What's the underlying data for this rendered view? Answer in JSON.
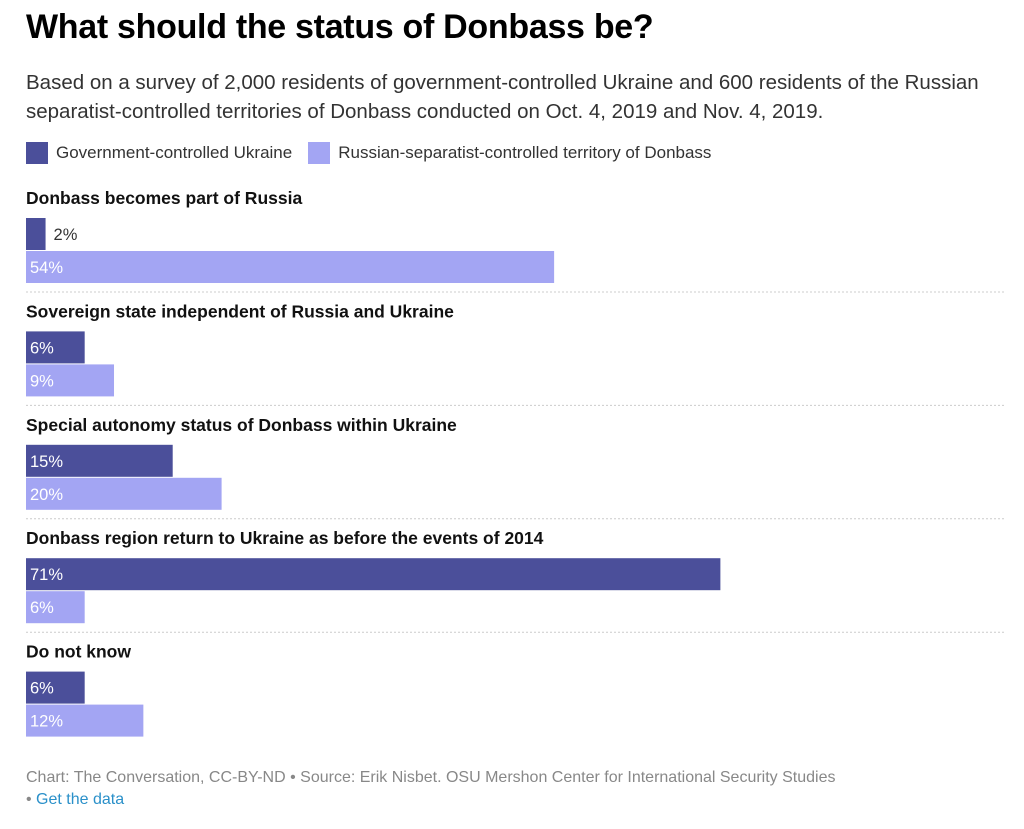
{
  "header": {
    "title": "What should the status of Donbass be?",
    "subtitle": "Based on a survey of 2,000 residents of government-controlled Ukraine and 600 residents of the Russian separatist-controlled territories of Donbass conducted on Oct. 4, 2019 and Nov. 4, 2019."
  },
  "footer": {
    "source": "Chart: The Conversation, CC-BY-ND • Source: Erik Nisbet. OSU Mershon Center for International Security Studies",
    "bullet": "• ",
    "link": "Get the data"
  },
  "colors": {
    "government": "#4b4f9a",
    "separatist": "#a3a5f3",
    "divider": "#cccccc"
  },
  "chart_data": {
    "type": "bar",
    "orientation": "horizontal",
    "title": "What should the status of Donbass be?",
    "categories": [
      "Donbass becomes part of Russia",
      "Sovereign state independent of Russia and Ukraine",
      "Special autonomy status of Donbass within Ukraine",
      "Donbass region return to Ukraine as before the events of 2014",
      "Do not know"
    ],
    "series": [
      {
        "name": "Government-controlled Ukraine",
        "values": [
          2,
          6,
          15,
          71,
          6
        ]
      },
      {
        "name": "Russian-separatist-controlled territory of Donbass",
        "values": [
          54,
          9,
          20,
          6,
          12
        ]
      }
    ],
    "value_suffix": "%",
    "xlim": [
      0,
      100
    ],
    "legend": "top-left",
    "grid": false
  }
}
